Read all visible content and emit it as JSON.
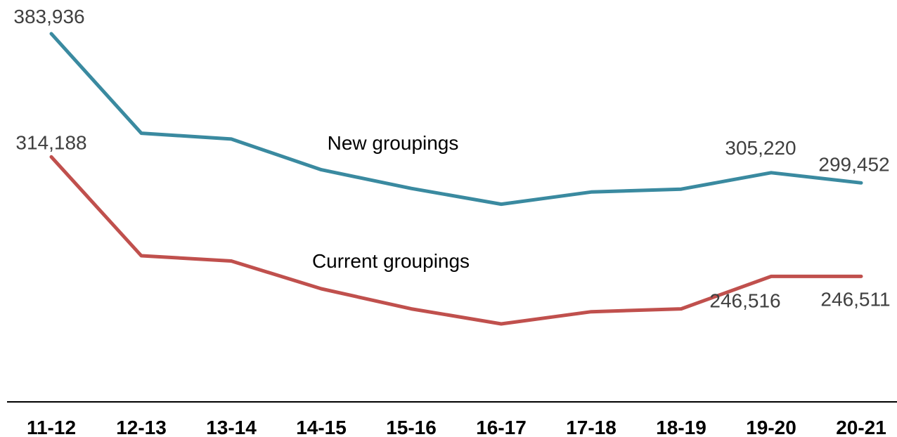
{
  "chart_data": {
    "type": "line",
    "categories": [
      "11-12",
      "12-13",
      "13-14",
      "14-15",
      "15-16",
      "16-17",
      "17-18",
      "18-19",
      "19-20",
      "20-21"
    ],
    "series": [
      {
        "name": "New groupings",
        "color": "#3a8aa0",
        "values": [
          383936,
          327600,
          324300,
          306900,
          296300,
          287400,
          294300,
          295900,
          305220,
          299452
        ],
        "labels": [
          "383,936",
          "",
          "",
          "",
          "",
          "",
          "",
          "",
          "305,220",
          "299,452"
        ]
      },
      {
        "name": "Current groupings",
        "color": "#c0504d",
        "values": [
          314188,
          258200,
          255200,
          239500,
          228100,
          219600,
          226500,
          228100,
          246516,
          246511
        ],
        "labels": [
          "314,188",
          "",
          "",
          "",
          "",
          "",
          "",
          "",
          "246,516",
          "246,511"
        ]
      }
    ],
    "ylim": [
      150000,
      400000
    ],
    "grid": false,
    "legend": "inline"
  }
}
